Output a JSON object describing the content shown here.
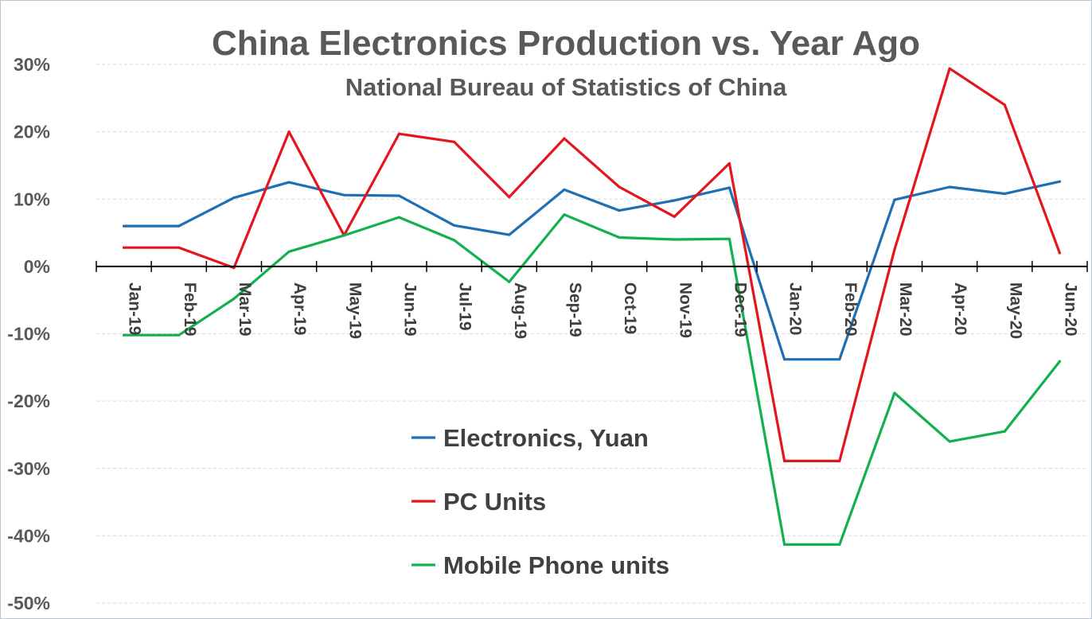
{
  "chart_data": {
    "type": "line",
    "title": "China Electronics Production vs. Year Ago",
    "subtitle": "National Bureau of Statistics of China",
    "xlabel": "",
    "ylabel": "",
    "categories": [
      "Jan-19",
      "Feb-19",
      "Mar-19",
      "Apr-19",
      "May-19",
      "Jun-19",
      "Jul-19",
      "Aug-19",
      "Sep-19",
      "Oct-19",
      "Nov-19",
      "Dec-19",
      "Jan-20",
      "Feb-20",
      "Mar-20",
      "Apr-20",
      "May-20",
      "Jun-20"
    ],
    "ylim": [
      -50,
      30
    ],
    "yticks": [
      30,
      20,
      10,
      0,
      -10,
      -20,
      -30,
      -40,
      -50
    ],
    "ytick_labels": [
      "30%",
      "20%",
      "10%",
      "0%",
      "-10%",
      "-20%",
      "-30%",
      "-40%",
      "-50%"
    ],
    "grid": true,
    "legend_position": "center-bottom",
    "series": [
      {
        "name": "Electronics, Yuan",
        "color": "#1f6fb5",
        "values": [
          6.0,
          6.0,
          10.2,
          12.5,
          10.6,
          10.5,
          6.1,
          4.7,
          11.4,
          8.3,
          9.8,
          11.7,
          -13.8,
          -13.8,
          9.9,
          11.8,
          10.8,
          12.6
        ]
      },
      {
        "name": "PC Units",
        "color": "#e3161e",
        "values": [
          2.8,
          2.8,
          -0.2,
          20.0,
          4.6,
          19.7,
          18.5,
          10.3,
          19.0,
          11.8,
          7.4,
          15.3,
          -28.9,
          -28.9,
          2.5,
          29.4,
          24.0,
          2.0
        ]
      },
      {
        "name": "Mobile Phone units",
        "color": "#13b04f",
        "values": [
          -10.2,
          -10.2,
          -4.8,
          2.2,
          4.6,
          7.3,
          3.9,
          -2.3,
          7.7,
          4.3,
          4.0,
          4.1,
          -41.3,
          -41.3,
          -18.8,
          -26.0,
          -24.5,
          -14.1
        ]
      }
    ]
  }
}
